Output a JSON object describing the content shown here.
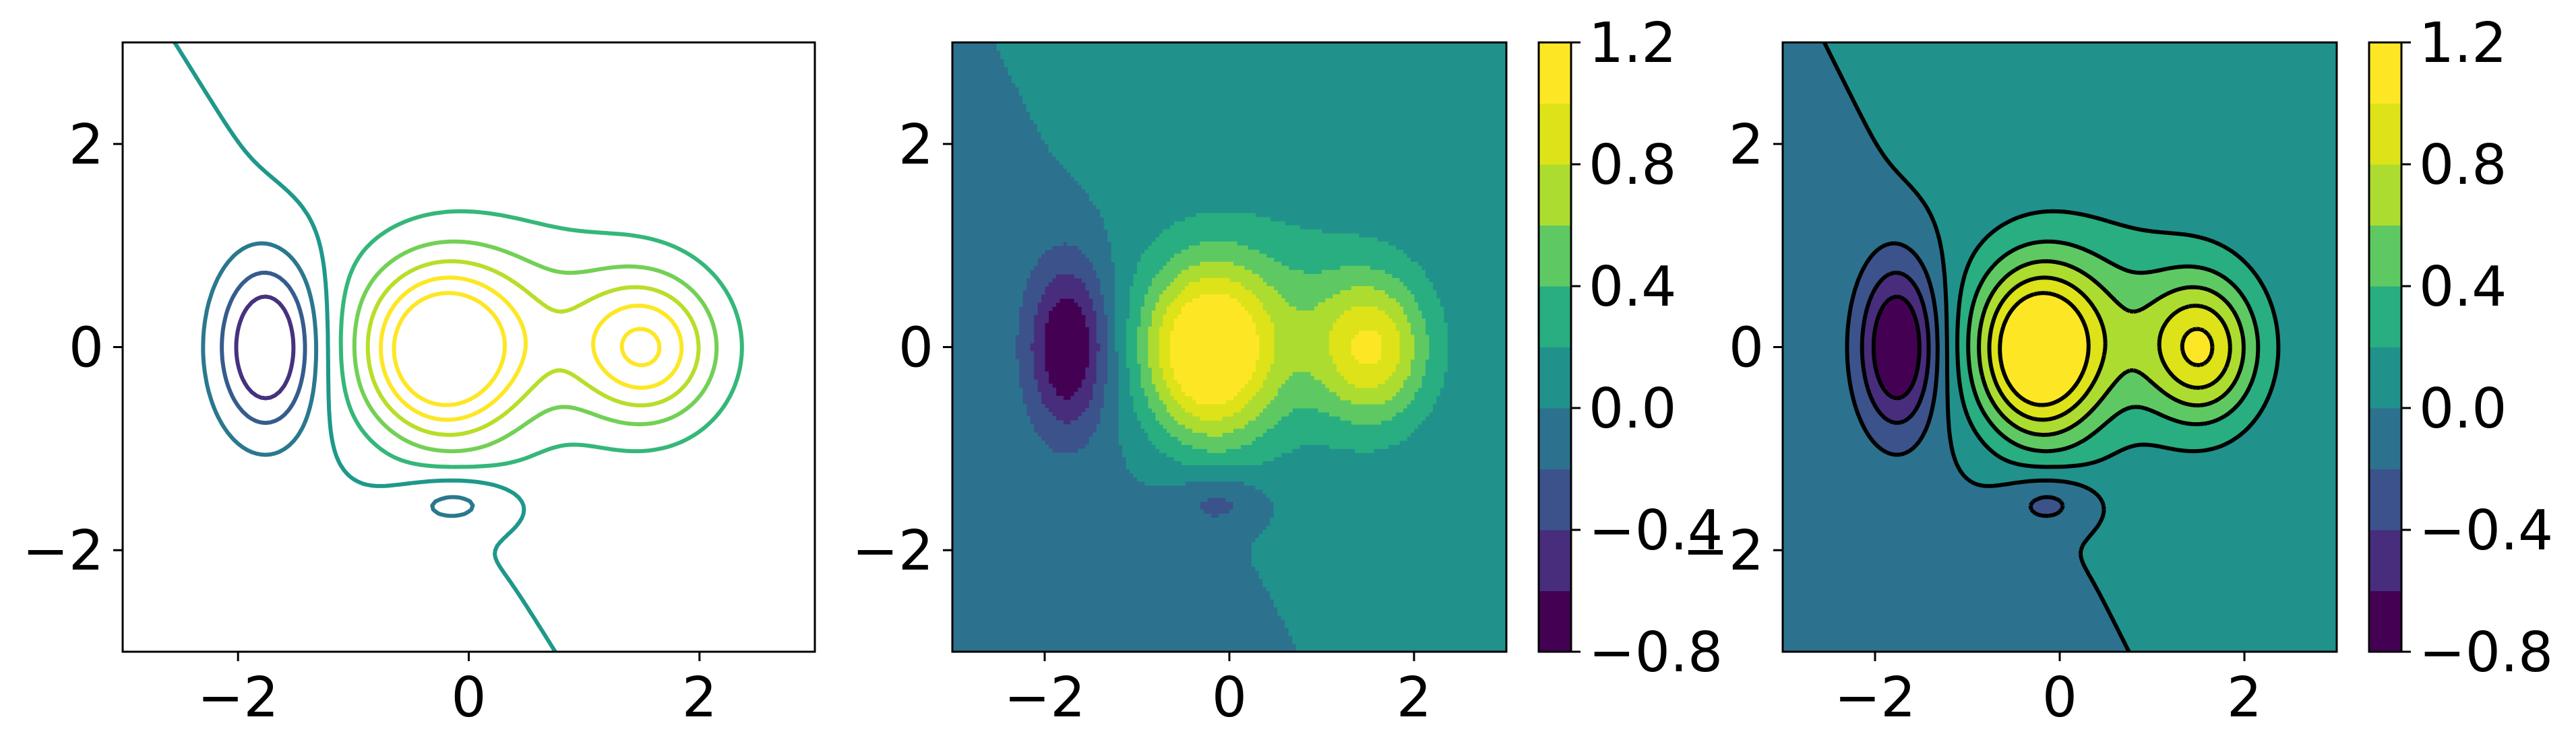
{
  "chart_data": [
    {
      "type": "contour",
      "style": "lines",
      "xlim": [
        -3,
        3
      ],
      "ylim": [
        -3,
        3
      ],
      "xticks": [
        "−2",
        "0",
        "2"
      ],
      "yticks": [
        "−2",
        "0",
        "2"
      ],
      "xtick_values": [
        -2,
        0,
        2
      ],
      "ytick_values": [
        -2,
        0,
        2
      ],
      "levels": [
        -0.6,
        -0.4,
        -0.2,
        0.0,
        0.2,
        0.4,
        0.6,
        0.8,
        1.0
      ],
      "features": [
        {
          "kind": "peak",
          "x": -0.25,
          "y": 0.05,
          "value": 1.15
        },
        {
          "kind": "peak",
          "x": 1.55,
          "y": 0.0,
          "value": 0.75
        },
        {
          "kind": "trough",
          "x": -1.75,
          "y": 0.0,
          "value": -0.7
        },
        {
          "kind": "trough",
          "x": -0.1,
          "y": -1.5,
          "value": -0.28
        }
      ]
    },
    {
      "type": "contourf",
      "xlim": [
        -3,
        3
      ],
      "ylim": [
        -3,
        3
      ],
      "xticks": [
        "−2",
        "0",
        "2"
      ],
      "yticks": [
        "−2",
        "0",
        "2"
      ],
      "xtick_values": [
        -2,
        0,
        2
      ],
      "ytick_values": [
        -2,
        0,
        2
      ],
      "colorbar": {
        "ticks": [
          "1.2",
          "0.8",
          "0.4",
          "0.0",
          "−0.4",
          "−0.8"
        ],
        "tick_values": [
          1.2,
          0.8,
          0.4,
          0.0,
          -0.4,
          -0.8
        ],
        "range": [
          -0.8,
          1.2
        ],
        "levels": [
          -0.8,
          -0.6,
          -0.4,
          -0.2,
          0.0,
          0.2,
          0.4,
          0.6,
          0.8,
          1.0,
          1.2
        ]
      }
    },
    {
      "type": "contourf",
      "overlay": "black contour lines, negative levels dashed",
      "xlim": [
        -3,
        3
      ],
      "ylim": [
        -3,
        3
      ],
      "xticks": [
        "−2",
        "0",
        "2"
      ],
      "yticks": [
        "−2",
        "0",
        "2"
      ],
      "xtick_values": [
        -2,
        0,
        2
      ],
      "ytick_values": [
        -2,
        0,
        2
      ],
      "colorbar": {
        "ticks": [
          "1.2",
          "0.8",
          "0.4",
          "0.0",
          "−0.4",
          "−0.8"
        ],
        "tick_values": [
          1.2,
          0.8,
          0.4,
          0.0,
          -0.4,
          -0.8
        ],
        "range": [
          -0.8,
          1.2
        ],
        "levels": [
          -0.8,
          -0.6,
          -0.4,
          -0.2,
          0.0,
          0.2,
          0.4,
          0.6,
          0.8,
          1.0,
          1.2
        ]
      }
    }
  ],
  "colors": {
    "band_colors": [
      "#440154",
      "#472d7b",
      "#3b528b",
      "#2c728e",
      "#21918c",
      "#28ae80",
      "#5ec962",
      "#addc30",
      "#fde725",
      "#fde725"
    ],
    "line_colors": [
      "#46327e",
      "#365c8d",
      "#2a788e",
      "#1f988b",
      "#35b779",
      "#73d055",
      "#b8de29",
      "#fde725",
      "#fde725"
    ],
    "bands": [
      "#440154",
      "#472d7b",
      "#3b528b",
      "#2c728e",
      "#21918c",
      "#28ae80",
      "#5ec962",
      "#addc30",
      "#dde318",
      "#fde725"
    ],
    "overlay_line": "#000000"
  }
}
